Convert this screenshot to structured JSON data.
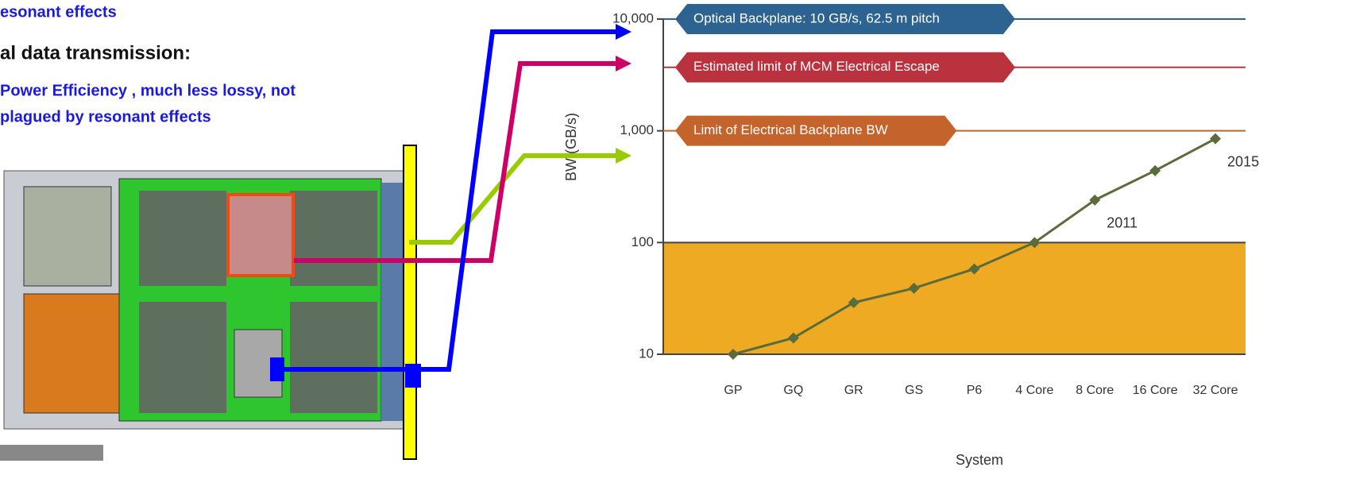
{
  "slide_text": [
    "esonant effects",
    "al data transmission:",
    "Power Efficiency , much less lossy, not",
    "plagued by resonant effects"
  ],
  "chart_data": {
    "type": "line",
    "y_label": "BW (GB/s)",
    "x_label": "System",
    "categories": [
      "GP",
      "GQ",
      "GR",
      "GS",
      "P6",
      "4 Core",
      "8 Core",
      "16 Core",
      "32 Core"
    ],
    "values": [
      10,
      14,
      29,
      39,
      58,
      100,
      240,
      440,
      850
    ],
    "color": "#5b6b3b",
    "log_scale": true,
    "ylim": [
      10,
      10000
    ],
    "yticks": [
      10,
      100,
      {
        "value": 1000,
        "label": "1,000"
      },
      {
        "value": 10000,
        "label": "10,000"
      }
    ],
    "shade": {
      "range": [
        10,
        100
      ],
      "color": "#eeaa22"
    },
    "reference_lines": [
      {
        "label": "Optical Backplane: 10 GB/s, 62.5 m pitch",
        "value": 10000,
        "color": "#2d6391"
      },
      {
        "label": "Estimated limit of MCM Electrical Escape",
        "value": 3700,
        "color": "#b9323e"
      },
      {
        "label": "Limit of Electrical Backplane BW",
        "value": 1000,
        "color": "#c4632b"
      }
    ],
    "annotations": [
      {
        "text": "2011",
        "category": 6
      },
      {
        "text": "2015",
        "category": 8
      }
    ]
  }
}
